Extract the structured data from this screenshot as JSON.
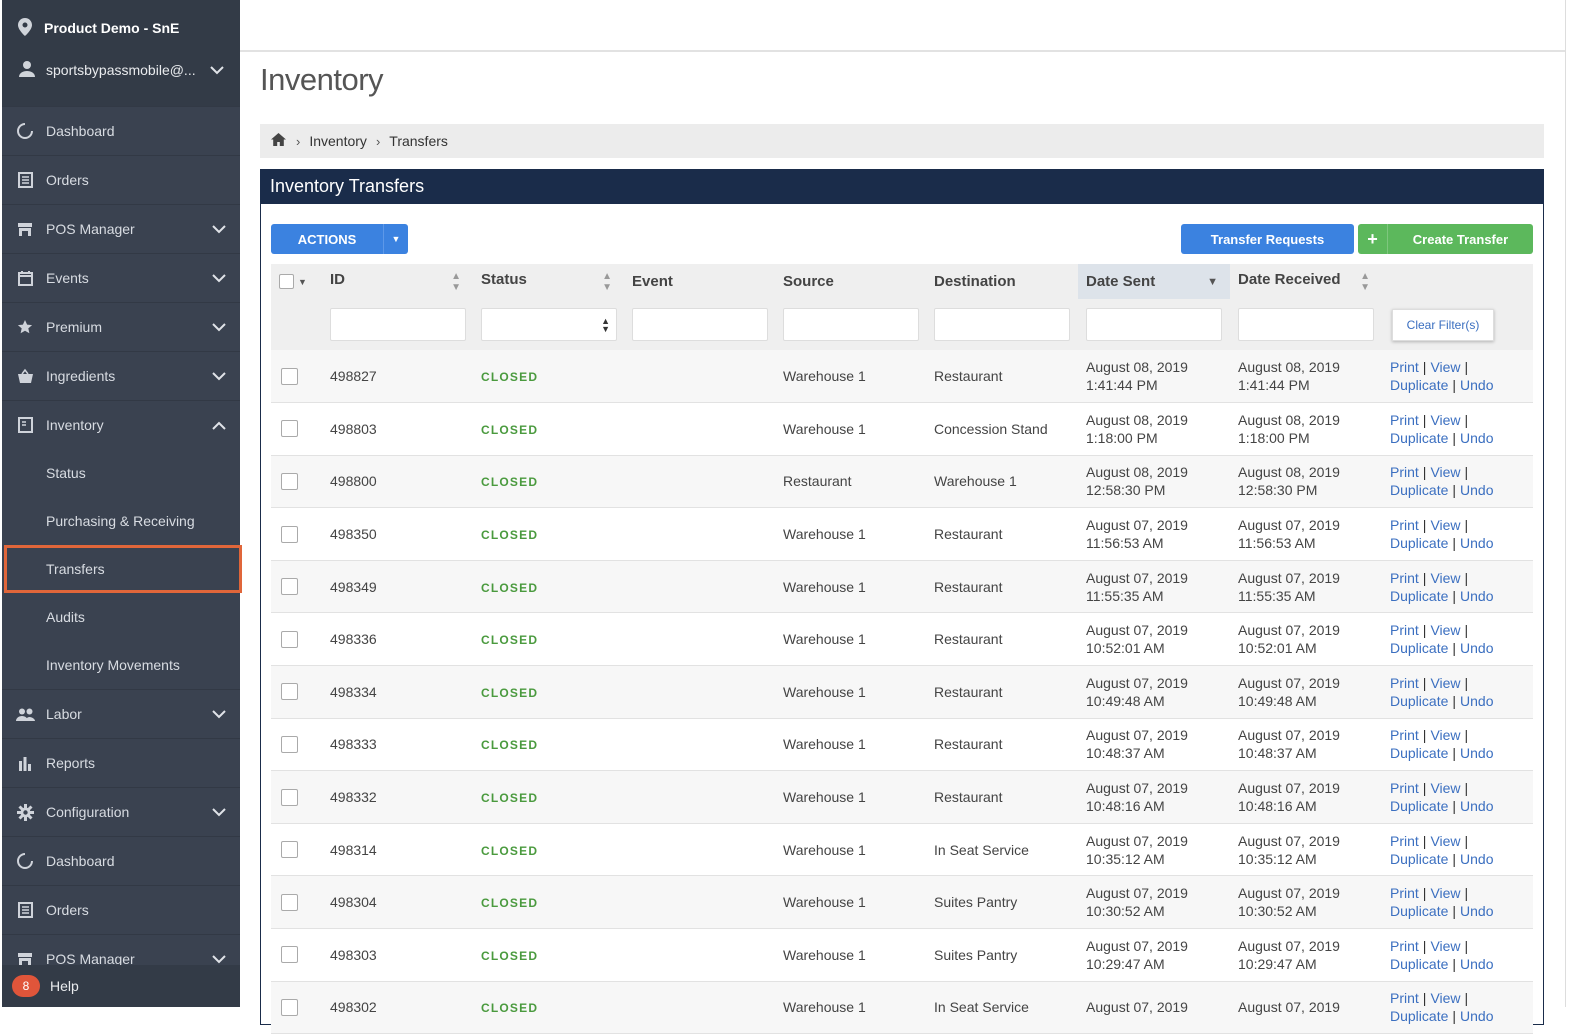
{
  "sidebar": {
    "venue": "Product Demo - SnE",
    "user": "sportsbypassmobile@...",
    "items": [
      {
        "label": "Dashboard",
        "icon": "dashboard-icon",
        "chevron": ""
      },
      {
        "label": "Orders",
        "icon": "orders-icon",
        "chevron": ""
      },
      {
        "label": "POS Manager",
        "icon": "store-icon",
        "chevron": "down"
      },
      {
        "label": "Events",
        "icon": "calendar-icon",
        "chevron": "down"
      },
      {
        "label": "Premium",
        "icon": "star-icon",
        "chevron": "down"
      },
      {
        "label": "Ingredients",
        "icon": "basket-icon",
        "chevron": "down"
      },
      {
        "label": "Inventory",
        "icon": "inventory-icon",
        "chevron": "up"
      }
    ],
    "inventory_sub": [
      "Status",
      "Purchasing & Receiving",
      "Transfers",
      "Audits",
      "Inventory Movements"
    ],
    "active_sub": "Transfers",
    "items_after": [
      {
        "label": "Labor",
        "icon": "people-icon",
        "chevron": "down"
      },
      {
        "label": "Reports",
        "icon": "bar-chart-icon",
        "chevron": ""
      },
      {
        "label": "Configuration",
        "icon": "gear-icon",
        "chevron": "down"
      },
      {
        "label": "Dashboard",
        "icon": "dashboard-icon",
        "chevron": ""
      },
      {
        "label": "Orders",
        "icon": "orders-icon",
        "chevron": ""
      },
      {
        "label": "POS Manager",
        "icon": "store-icon",
        "chevron": "down"
      }
    ],
    "help": {
      "badge": "8",
      "label": "Help"
    }
  },
  "page": {
    "title": "Inventory",
    "breadcrumb": [
      "Inventory",
      "Transfers"
    ]
  },
  "panel": {
    "title": "Inventory Transfers",
    "actions_label": "ACTIONS",
    "transfer_requests_label": "Transfer Requests",
    "create_transfer_label": "Create Transfer",
    "clear_filters_label": "Clear Filter(s)"
  },
  "table": {
    "columns": [
      "ID",
      "Status",
      "Event",
      "Source",
      "Destination",
      "Date Sent",
      "Date Received"
    ],
    "sorted_column": "Date Sent",
    "link_labels": {
      "print": "Print",
      "view": "View",
      "duplicate": "Duplicate",
      "undo": "Undo"
    },
    "rows": [
      {
        "id": "498827",
        "status": "CLOSED",
        "event": "",
        "source": "Warehouse 1",
        "destination": "Restaurant",
        "sent_date": "August 08, 2019",
        "sent_time": "1:41:44 PM",
        "recv_date": "August 08, 2019",
        "recv_time": "1:41:44 PM"
      },
      {
        "id": "498803",
        "status": "CLOSED",
        "event": "",
        "source": "Warehouse 1",
        "destination": "Concession Stand",
        "sent_date": "August 08, 2019",
        "sent_time": "1:18:00 PM",
        "recv_date": "August 08, 2019",
        "recv_time": "1:18:00 PM"
      },
      {
        "id": "498800",
        "status": "CLOSED",
        "event": "",
        "source": "Restaurant",
        "destination": "Warehouse 1",
        "sent_date": "August 08, 2019",
        "sent_time": "12:58:30 PM",
        "recv_date": "August 08, 2019",
        "recv_time": "12:58:30 PM"
      },
      {
        "id": "498350",
        "status": "CLOSED",
        "event": "",
        "source": "Warehouse 1",
        "destination": "Restaurant",
        "sent_date": "August 07, 2019",
        "sent_time": "11:56:53 AM",
        "recv_date": "August 07, 2019",
        "recv_time": "11:56:53 AM"
      },
      {
        "id": "498349",
        "status": "CLOSED",
        "event": "",
        "source": "Warehouse 1",
        "destination": "Restaurant",
        "sent_date": "August 07, 2019",
        "sent_time": "11:55:35 AM",
        "recv_date": "August 07, 2019",
        "recv_time": "11:55:35 AM"
      },
      {
        "id": "498336",
        "status": "CLOSED",
        "event": "",
        "source": "Warehouse 1",
        "destination": "Restaurant",
        "sent_date": "August 07, 2019",
        "sent_time": "10:52:01 AM",
        "recv_date": "August 07, 2019",
        "recv_time": "10:52:01 AM"
      },
      {
        "id": "498334",
        "status": "CLOSED",
        "event": "",
        "source": "Warehouse 1",
        "destination": "Restaurant",
        "sent_date": "August 07, 2019",
        "sent_time": "10:49:48 AM",
        "recv_date": "August 07, 2019",
        "recv_time": "10:49:48 AM"
      },
      {
        "id": "498333",
        "status": "CLOSED",
        "event": "",
        "source": "Warehouse 1",
        "destination": "Restaurant",
        "sent_date": "August 07, 2019",
        "sent_time": "10:48:37 AM",
        "recv_date": "August 07, 2019",
        "recv_time": "10:48:37 AM"
      },
      {
        "id": "498332",
        "status": "CLOSED",
        "event": "",
        "source": "Warehouse 1",
        "destination": "Restaurant",
        "sent_date": "August 07, 2019",
        "sent_time": "10:48:16 AM",
        "recv_date": "August 07, 2019",
        "recv_time": "10:48:16 AM"
      },
      {
        "id": "498314",
        "status": "CLOSED",
        "event": "",
        "source": "Warehouse 1",
        "destination": "In Seat Service",
        "sent_date": "August 07, 2019",
        "sent_time": "10:35:12 AM",
        "recv_date": "August 07, 2019",
        "recv_time": "10:35:12 AM"
      },
      {
        "id": "498304",
        "status": "CLOSED",
        "event": "",
        "source": "Warehouse 1",
        "destination": "Suites Pantry",
        "sent_date": "August 07, 2019",
        "sent_time": "10:30:52 AM",
        "recv_date": "August 07, 2019",
        "recv_time": "10:30:52 AM"
      },
      {
        "id": "498303",
        "status": "CLOSED",
        "event": "",
        "source": "Warehouse 1",
        "destination": "Suites Pantry",
        "sent_date": "August 07, 2019",
        "sent_time": "10:29:47 AM",
        "recv_date": "August 07, 2019",
        "recv_time": "10:29:47 AM"
      },
      {
        "id": "498302",
        "status": "CLOSED",
        "event": "",
        "source": "Warehouse 1",
        "destination": "In Seat Service",
        "sent_date": "August 07, 2019",
        "sent_time": "",
        "recv_date": "August 07, 2019",
        "recv_time": ""
      }
    ]
  },
  "colors": {
    "sidebar_bg": "#3a4250",
    "panel_header": "#1a2c4a",
    "primary": "#3b82e0",
    "success": "#5cb85c",
    "status_closed": "#4a9a3e",
    "link": "#3b6fc0",
    "highlight": "#e0663a"
  }
}
